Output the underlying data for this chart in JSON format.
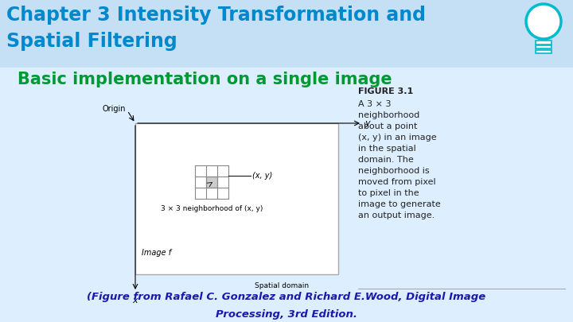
{
  "bg_color": "#ddeeff",
  "header_color": "#c8dff5",
  "title_line1": "Chapter 3 Intensity Transformation and",
  "title_line2": "Spatial Filtering",
  "title_color": "#0088cc",
  "subtitle": "Basic implementation on a single image",
  "subtitle_color": "#009933",
  "footer_line1": "(Figure from Rafael C. Gonzalez and Richard E.Wood, Digital Image",
  "footer_line2": "Processing, 3rd Edition.",
  "footer_color": "#1a1aaa",
  "figure_caption_bold": "FIGURE 3.1",
  "figure_caption_text": "A 3 × 3\nneighborhood\nabout a point\n(x, y) in an image\nin the spatial\ndomain. The\nneighborhood is\nmoved from pixel\nto pixel in the\nimage to generate\nan output image.",
  "caption_color": "#222222",
  "white": "#ffffff",
  "lightbulb_color": "#00bbcc"
}
